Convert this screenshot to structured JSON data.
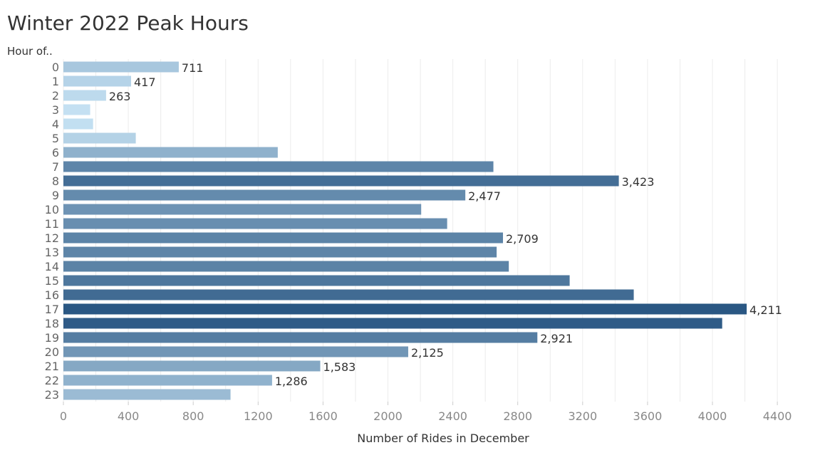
{
  "chart_data": {
    "type": "bar",
    "orientation": "horizontal",
    "title": "Winter 2022 Peak Hours",
    "ylabel": "Hour of..",
    "xlabel": "Number of Rides in December",
    "categories": [
      "0",
      "1",
      "2",
      "3",
      "4",
      "5",
      "6",
      "7",
      "8",
      "9",
      "10",
      "11",
      "12",
      "13",
      "14",
      "15",
      "16",
      "17",
      "18",
      "19",
      "20",
      "21",
      "22",
      "23"
    ],
    "values": [
      711,
      417,
      263,
      165,
      183,
      446,
      1321,
      2650,
      3423,
      2477,
      2205,
      2365,
      2709,
      2670,
      2745,
      3120,
      3515,
      4211,
      4060,
      2921,
      2125,
      1583,
      1286,
      1030
    ],
    "data_labels": [
      "711",
      "417",
      "263",
      "",
      "",
      "",
      "",
      "",
      "3,423",
      "2,477",
      "",
      "",
      "2,709",
      "",
      "",
      "",
      "",
      "4,211",
      "",
      "2,921",
      "2,125",
      "1,583",
      "1,286",
      ""
    ],
    "xlim": [
      0,
      4600
    ],
    "xticks": [
      "0",
      "400",
      "800",
      "1200",
      "1600",
      "2000",
      "2400",
      "2800",
      "3200",
      "3600",
      "4000",
      "4400"
    ],
    "grid": true,
    "color_scale": [
      "#c4e0f2",
      "#2a5783"
    ]
  }
}
